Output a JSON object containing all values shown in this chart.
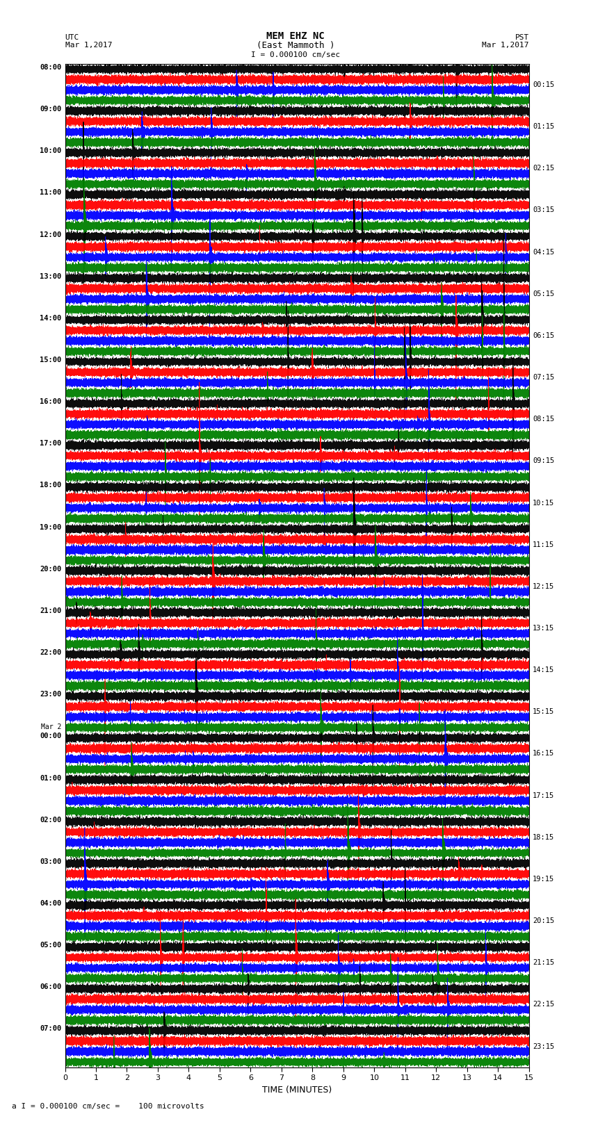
{
  "title_line1": "MEM EHZ NC",
  "title_line2": "(East Mammoth )",
  "scale_label": "I = 0.000100 cm/sec",
  "footer_label": "a I = 0.000100 cm/sec =    100 microvolts",
  "utc_label": "UTC",
  "pst_label": "PST",
  "date_left": "Mar 1,2017",
  "date_right": "Mar 1,2017",
  "xlabel": "TIME (MINUTES)",
  "trace_colors": [
    "black",
    "red",
    "blue",
    "green"
  ],
  "n_hours": 24,
  "traces_per_hour": 4,
  "minutes": 15,
  "sample_rate": 50,
  "background_color": "white",
  "grid_color": "#888888",
  "fig_width": 8.5,
  "fig_height": 16.13,
  "dpi": 100,
  "left_hour_labels": [
    "08:00",
    "09:00",
    "10:00",
    "11:00",
    "12:00",
    "13:00",
    "14:00",
    "15:00",
    "16:00",
    "17:00",
    "18:00",
    "19:00",
    "20:00",
    "21:00",
    "22:00",
    "23:00",
    "Mar 2\n00:00",
    "01:00",
    "02:00",
    "03:00",
    "04:00",
    "05:00",
    "06:00",
    "07:00"
  ],
  "right_hour_labels": [
    "00:15",
    "01:15",
    "02:15",
    "03:15",
    "04:15",
    "05:15",
    "06:15",
    "07:15",
    "08:15",
    "09:15",
    "10:15",
    "11:15",
    "12:15",
    "13:15",
    "14:15",
    "15:15",
    "16:15",
    "17:15",
    "18:15",
    "19:15",
    "20:15",
    "21:15",
    "22:15",
    "23:15"
  ]
}
